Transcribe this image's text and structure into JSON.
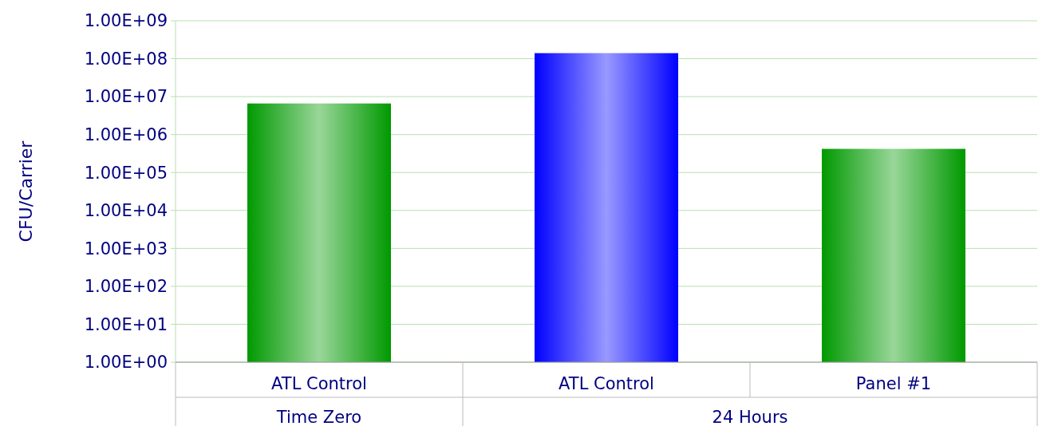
{
  "chart_data": {
    "type": "bar",
    "ylabel": "CFU/Carrier",
    "categories": [
      "ATL Control",
      "ATL Control",
      "Panel #1"
    ],
    "values": [
      6600000,
      140000000,
      420000
    ],
    "colors": [
      "#009900",
      "#0000ff",
      "#009900"
    ],
    "log": true,
    "ylim": [
      1,
      1000000000
    ],
    "yticks": [
      {
        "value": 1,
        "label": "1.00E+00"
      },
      {
        "value": 10,
        "label": "1.00E+01"
      },
      {
        "value": 100,
        "label": "1.00E+02"
      },
      {
        "value": 1000,
        "label": "1.00E+03"
      },
      {
        "value": 10000,
        "label": "1.00E+04"
      },
      {
        "value": 100000,
        "label": "1.00E+05"
      },
      {
        "value": 1000000,
        "label": "1.00E+06"
      },
      {
        "value": 10000000,
        "label": "1.00E+07"
      },
      {
        "value": 100000000,
        "label": "1.00E+08"
      },
      {
        "value": 1000000000,
        "label": "1.00E+09"
      }
    ],
    "grid": "y",
    "annotations": [
      "Time Zero",
      "24 Hours"
    ]
  }
}
